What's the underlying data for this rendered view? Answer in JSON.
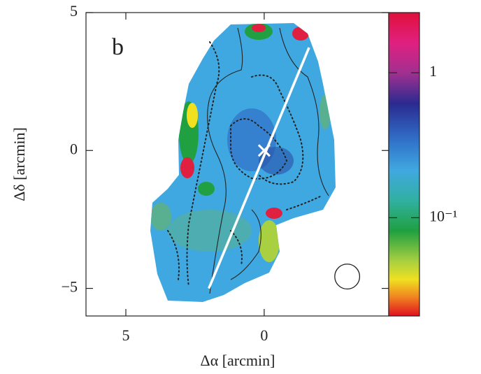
{
  "chart_data": {
    "type": "map",
    "panel_label": "b",
    "x_label": "Δα [arcmin]",
    "y_label": "Δδ [arcmin]",
    "xlim": [
      6.44,
      -4.5
    ],
    "ylim": [
      -6,
      5
    ],
    "xticks": [
      5,
      0
    ],
    "yticks": [
      5,
      0,
      {
        "value": -5,
        "label": "−5"
      }
    ],
    "colorbar": {
      "scale": "log",
      "lim": [
        0.021,
        2.6
      ],
      "ticks": [
        1,
        {
          "value": 0.1,
          "label": "10⁻¹"
        }
      ]
    },
    "line": {
      "x": [
        2,
        -1.62
      ],
      "y": [
        -5,
        3.73
      ],
      "color": "#ffffff"
    },
    "marker": {
      "x": 0,
      "y": 0,
      "color": "#ffffff"
    },
    "beam": {
      "x": -3,
      "y": -4.57,
      "radius": 0.45
    }
  }
}
